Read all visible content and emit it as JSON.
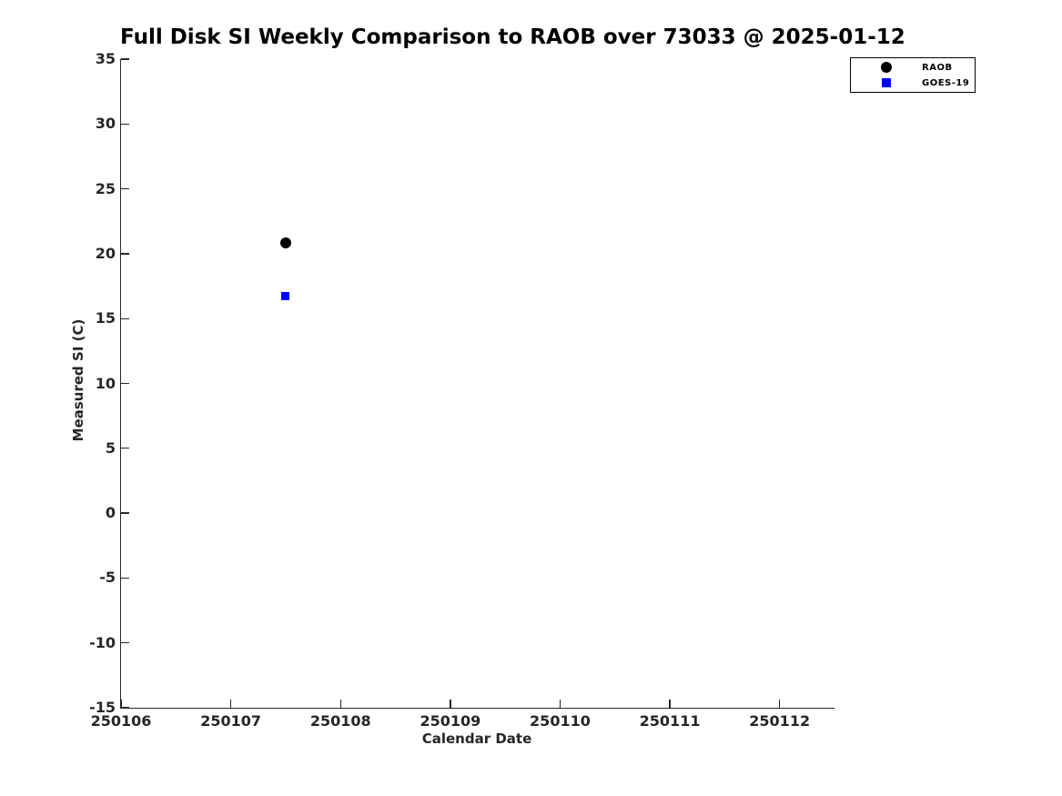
{
  "chart_data": {
    "type": "scatter",
    "title": "Full Disk SI Weekly Comparison to RAOB over 73033 @ 2025-01-12",
    "xlabel": "Calendar Date",
    "ylabel": "Measured SI (C)",
    "xlim": [
      250106,
      250112.5
    ],
    "ylim": [
      -15,
      35
    ],
    "xticks": [
      250106,
      250107,
      250108,
      250109,
      250110,
      250111,
      250112
    ],
    "yticks": [
      -15,
      -10,
      -5,
      0,
      5,
      10,
      15,
      20,
      25,
      30,
      35
    ],
    "grid": false,
    "legend_position": "top-right-outside-axes",
    "background_color": "#ffffff",
    "axis_color": "#262626",
    "series": [
      {
        "name": "RAOB",
        "marker": "circle",
        "color": "#000000",
        "points": [
          {
            "x": 250107.5,
            "y": 20.8
          }
        ]
      },
      {
        "name": "GOES-19",
        "marker": "square",
        "color": "#0000ff",
        "points": [
          {
            "x": 250107.5,
            "y": 16.7
          }
        ]
      }
    ]
  }
}
